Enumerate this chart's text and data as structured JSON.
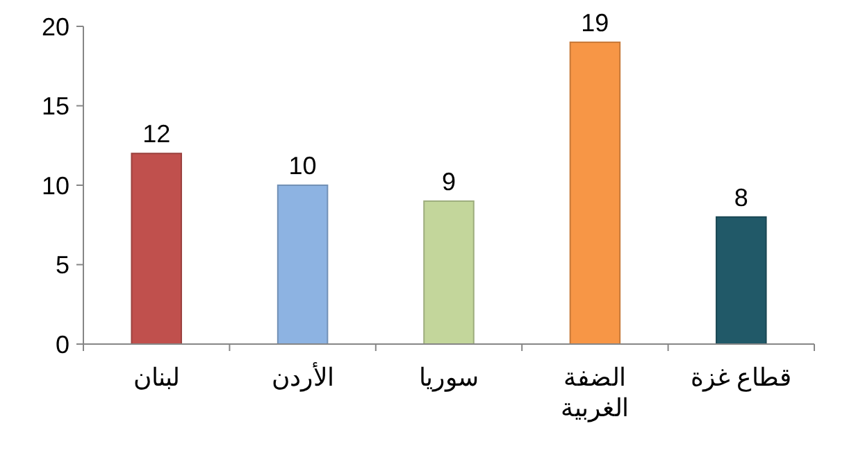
{
  "chart_data": {
    "type": "bar",
    "categories": [
      "لبنان",
      "الأردن",
      "سوريا",
      "الضفة الغربية",
      "قطاع غزة"
    ],
    "values": [
      12,
      10,
      9,
      19,
      8
    ],
    "colors": [
      "#c0504d",
      "#8db3e2",
      "#c3d69b",
      "#f79646",
      "#215968"
    ],
    "ylim": [
      0,
      20
    ],
    "yticks": [
      0,
      5,
      10,
      15,
      20
    ],
    "data_labels": true
  }
}
